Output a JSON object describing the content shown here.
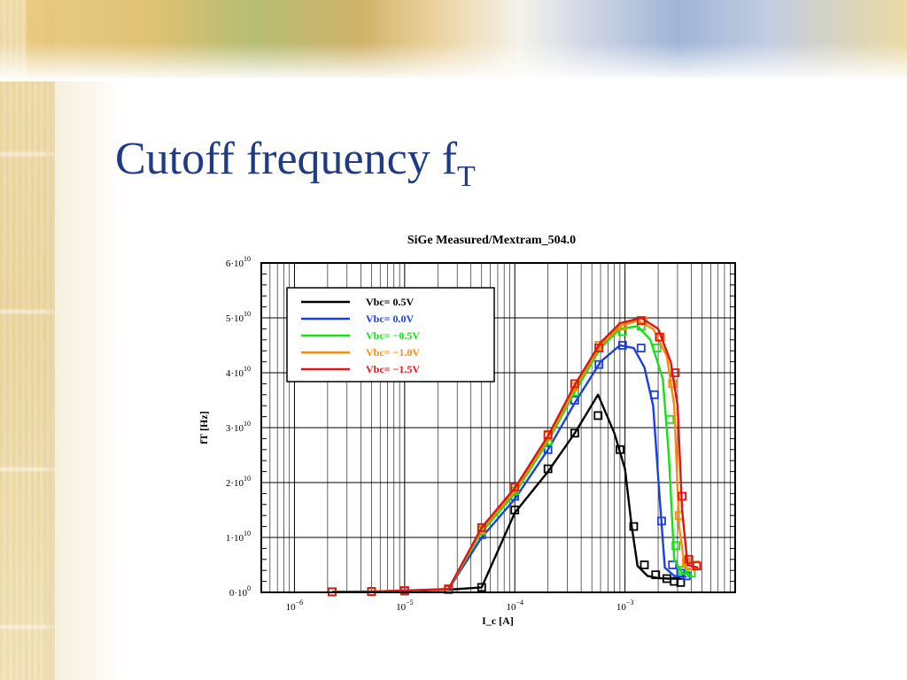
{
  "slide": {
    "title_main": "Cutoff frequency f",
    "title_sub": "T"
  },
  "colors": {
    "title": "#1f3b86",
    "Vbc=  0.5V": "#000000",
    "Vbc=  0.0V": "#1a3ee8",
    "Vbc= −0.5V": "#17e017",
    "Vbc= −1.0V": "#ff8c00",
    "Vbc= −1.5V": "#e01414"
  },
  "chart_data": {
    "type": "line",
    "title": "SiGe Measured/Mextram_504.0",
    "xlabel": "I_c [A]",
    "ylabel": "fT [Hz]",
    "x_scale": "log",
    "xlim": [
      5e-07,
      0.01
    ],
    "ylim": [
      0,
      60000000000.0
    ],
    "grid": true,
    "legend_position": "top-left",
    "x_ticks": [
      {
        "value": 1e-06,
        "base": "10",
        "exp": "−6"
      },
      {
        "value": 1e-05,
        "base": "10",
        "exp": "−5"
      },
      {
        "value": 0.0001,
        "base": "10",
        "exp": "−4"
      },
      {
        "value": 0.001,
        "base": "10",
        "exp": "−3"
      }
    ],
    "y_ticks": [
      {
        "value": 0,
        "base": "0·10",
        "exp": "0"
      },
      {
        "value": 10000000000.0,
        "base": "1·10",
        "exp": "10"
      },
      {
        "value": 20000000000.0,
        "base": "2·10",
        "exp": "10"
      },
      {
        "value": 30000000000.0,
        "base": "3·10",
        "exp": "10"
      },
      {
        "value": 40000000000.0,
        "base": "4·10",
        "exp": "10"
      },
      {
        "value": 50000000000.0,
        "base": "5·10",
        "exp": "10"
      },
      {
        "value": 60000000000.0,
        "base": "6·10",
        "exp": "10"
      }
    ],
    "series": [
      {
        "name": "Vbc=  0.5V",
        "model": [
          [
            2.2e-06,
            100000000.0
          ],
          [
            5e-06,
            150000000.0
          ],
          [
            1e-05,
            250000000.0
          ],
          [
            2.5e-05,
            480000000.0
          ],
          [
            5e-05,
            900000000.0
          ],
          [
            0.0001,
            14500000000.0
          ],
          [
            0.0002,
            22000000000.0
          ],
          [
            0.00035,
            29000000000.0
          ],
          [
            0.00057,
            36000000000.0
          ],
          [
            0.0008,
            29000000000.0
          ],
          [
            0.001,
            22500000000.0
          ],
          [
            0.00115,
            12000000000.0
          ],
          [
            0.0013,
            4800000000.0
          ],
          [
            0.0016,
            3000000000.0
          ],
          [
            0.002,
            2600000000.0
          ],
          [
            0.0025,
            2500000000.0
          ],
          [
            0.0032,
            2500000000.0
          ]
        ],
        "measured": [
          [
            2.2e-06,
            100000000.0
          ],
          [
            5e-06,
            150000000.0
          ],
          [
            1e-05,
            250000000.0
          ],
          [
            2.5e-05,
            500000000.0
          ],
          [
            5e-05,
            900000000.0
          ],
          [
            0.0001,
            15000000000.0
          ],
          [
            0.0002,
            22500000000.0
          ],
          [
            0.00035,
            29000000000.0
          ],
          [
            0.00057,
            32200000000.0
          ],
          [
            0.0009,
            26000000000.0
          ],
          [
            0.0012,
            12000000000.0
          ],
          [
            0.0015,
            5000000000.0
          ],
          [
            0.0019,
            3200000000.0
          ],
          [
            0.0024,
            2500000000.0
          ],
          [
            0.0028,
            2000000000.0
          ],
          [
            0.0032,
            1800000000.0
          ]
        ]
      },
      {
        "name": "Vbc=  0.0V",
        "model": [
          [
            2.2e-06,
            100000000.0
          ],
          [
            5e-06,
            150000000.0
          ],
          [
            1e-05,
            280000000.0
          ],
          [
            2.5e-05,
            530000000.0
          ],
          [
            5e-05,
            10000000000.0
          ],
          [
            0.0001,
            17000000000.0
          ],
          [
            0.0002,
            26000000000.0
          ],
          [
            0.00035,
            34500000000.0
          ],
          [
            0.0006,
            42000000000.0
          ],
          [
            0.0009,
            45000000000.0
          ],
          [
            0.0012,
            44500000000.0
          ],
          [
            0.0015,
            41000000000.0
          ],
          [
            0.0018,
            34000000000.0
          ],
          [
            0.00205,
            18000000000.0
          ],
          [
            0.0023,
            4500000000.0
          ],
          [
            0.0028,
            3000000000.0
          ],
          [
            0.0036,
            2800000000.0
          ]
        ],
        "measured": [
          [
            2.2e-06,
            100000000.0
          ],
          [
            5e-06,
            150000000.0
          ],
          [
            1e-05,
            280000000.0
          ],
          [
            2.5e-05,
            550000000.0
          ],
          [
            5e-05,
            10500000000.0
          ],
          [
            0.0001,
            17500000000.0
          ],
          [
            0.0002,
            26000000000.0
          ],
          [
            0.00035,
            35000000000.0
          ],
          [
            0.00058,
            41500000000.0
          ],
          [
            0.00095,
            45000000000.0
          ],
          [
            0.0014,
            44500000000.0
          ],
          [
            0.00185,
            36000000000.0
          ],
          [
            0.00215,
            13000000000.0
          ],
          [
            0.0027,
            5000000000.0
          ],
          [
            0.0032,
            3500000000.0
          ],
          [
            0.0036,
            3000000000.0
          ]
        ]
      },
      {
        "name": "Vbc= −0.5V",
        "model": [
          [
            2.2e-06,
            100000000.0
          ],
          [
            5e-06,
            150000000.0
          ],
          [
            1e-05,
            300000000.0
          ],
          [
            2.5e-05,
            580000000.0
          ],
          [
            5e-05,
            11000000000.0
          ],
          [
            0.0001,
            18000000000.0
          ],
          [
            0.0002,
            27500000000.0
          ],
          [
            0.00035,
            36500000000.0
          ],
          [
            0.0006,
            44500000000.0
          ],
          [
            0.0009,
            48000000000.0
          ],
          [
            0.0013,
            48500000000.0
          ],
          [
            0.0017,
            46000000000.0
          ],
          [
            0.0022,
            39000000000.0
          ],
          [
            0.0025,
            25000000000.0
          ],
          [
            0.0028,
            6000000000.0
          ],
          [
            0.0033,
            3500000000.0
          ],
          [
            0.004,
            3200000000.0
          ]
        ],
        "measured": [
          [
            2.2e-06,
            100000000.0
          ],
          [
            5e-06,
            150000000.0
          ],
          [
            1e-05,
            300000000.0
          ],
          [
            2.5e-05,
            600000000.0
          ],
          [
            5e-05,
            11200000000.0
          ],
          [
            0.0001,
            18500000000.0
          ],
          [
            0.0002,
            27500000000.0
          ],
          [
            0.00035,
            36500000000.0
          ],
          [
            0.00058,
            44500000000.0
          ],
          [
            0.00095,
            47500000000.0
          ],
          [
            0.0014,
            48500000000.0
          ],
          [
            0.00195,
            44500000000.0
          ],
          [
            0.00255,
            31500000000.0
          ],
          [
            0.0029,
            8500000000.0
          ],
          [
            0.0033,
            4000000000.0
          ],
          [
            0.004,
            3500000000.0
          ]
        ]
      },
      {
        "name": "Vbc= −1.0V",
        "model": [
          [
            2.2e-06,
            100000000.0
          ],
          [
            5e-06,
            150000000.0
          ],
          [
            1e-05,
            310000000.0
          ],
          [
            2.5e-05,
            600000000.0
          ],
          [
            5e-05,
            11500000000.0
          ],
          [
            0.0001,
            18500000000.0
          ],
          [
            0.0002,
            28000000000.0
          ],
          [
            0.00035,
            37200000000.0
          ],
          [
            0.0006,
            45000000000.0
          ],
          [
            0.0009,
            48500000000.0
          ],
          [
            0.0013,
            49500000000.0
          ],
          [
            0.0018,
            48000000000.0
          ],
          [
            0.0024,
            43000000000.0
          ],
          [
            0.0028,
            34000000000.0
          ],
          [
            0.0031,
            12000000000.0
          ],
          [
            0.0035,
            4500000000.0
          ],
          [
            0.0044,
            4000000000.0
          ]
        ],
        "measured": [
          [
            2.2e-06,
            100000000.0
          ],
          [
            5e-06,
            150000000.0
          ],
          [
            1e-05,
            300000000.0
          ],
          [
            2.5e-05,
            600000000.0
          ],
          [
            5e-05,
            11500000000.0
          ],
          [
            0.0001,
            19000000000.0
          ],
          [
            0.0002,
            28500000000.0
          ],
          [
            0.00035,
            37500000000.0
          ],
          [
            0.00058,
            45000000000.0
          ],
          [
            0.00095,
            48500000000.0
          ],
          [
            0.00145,
            49500000000.0
          ],
          [
            0.0021,
            46500000000.0
          ],
          [
            0.0027,
            38000000000.0
          ],
          [
            0.0031,
            14000000000.0
          ],
          [
            0.0036,
            5500000000.0
          ],
          [
            0.0044,
            5000000000.0
          ]
        ]
      },
      {
        "name": "Vbc= −1.5V",
        "model": [
          [
            2.2e-06,
            100000000.0
          ],
          [
            5e-06,
            150000000.0
          ],
          [
            1e-05,
            320000000.0
          ],
          [
            2.5e-05,
            620000000.0
          ],
          [
            5e-05,
            11800000000.0
          ],
          [
            0.0001,
            19000000000.0
          ],
          [
            0.0002,
            28500000000.0
          ],
          [
            0.00035,
            37800000000.0
          ],
          [
            0.0006,
            45500000000.0
          ],
          [
            0.0009,
            49000000000.0
          ],
          [
            0.0014,
            50000000000.0
          ],
          [
            0.002,
            48000000000.0
          ],
          [
            0.0026,
            42000000000.0
          ],
          [
            0.003,
            34000000000.0
          ],
          [
            0.0033,
            15000000000.0
          ],
          [
            0.0037,
            5000000000.0
          ],
          [
            0.0046,
            4500000000.0
          ]
        ],
        "measured": [
          [
            2.2e-06,
            100000000.0
          ],
          [
            5e-06,
            150000000.0
          ],
          [
            1e-05,
            320000000.0
          ],
          [
            2.5e-05,
            620000000.0
          ],
          [
            5e-05,
            11800000000.0
          ],
          [
            0.0001,
            19200000000.0
          ],
          [
            0.0002,
            28700000000.0
          ],
          [
            0.00035,
            38000000000.0
          ],
          [
            0.00058,
            44500000000.0
          ],
          [
            0.0014,
            49500000000.0
          ],
          [
            0.00205,
            46500000000.0
          ],
          [
            0.00285,
            40000000000.0
          ],
          [
            0.0033,
            17500000000.0
          ],
          [
            0.0038,
            6000000000.0
          ],
          [
            0.0045,
            4800000000.0
          ]
        ]
      }
    ]
  }
}
